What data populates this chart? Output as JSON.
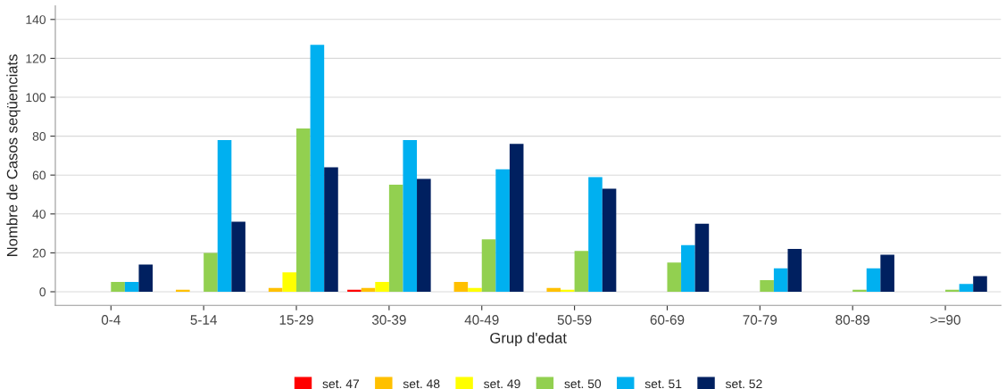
{
  "chart_data": {
    "type": "bar",
    "xlabel": "Grup d'edat",
    "ylabel": "Nombre de Casos seqüenciats",
    "categories": [
      "0-4",
      "5-14",
      "15-29",
      "30-39",
      "40-49",
      "50-59",
      "60-69",
      "70-79",
      "80-89",
      ">=90"
    ],
    "series": [
      {
        "name": "set. 47",
        "color": "#ff0000",
        "values": [
          null,
          null,
          null,
          1,
          null,
          null,
          null,
          null,
          null,
          null
        ]
      },
      {
        "name": "set. 48",
        "color": "#ffc000",
        "values": [
          null,
          1,
          2,
          2,
          5,
          2,
          null,
          null,
          null,
          null
        ]
      },
      {
        "name": "set. 49",
        "color": "#ffff00",
        "values": [
          null,
          null,
          10,
          5,
          2,
          1,
          null,
          null,
          null,
          null
        ]
      },
      {
        "name": "set. 50",
        "color": "#92d050",
        "values": [
          5,
          20,
          84,
          55,
          27,
          21,
          15,
          6,
          1,
          1
        ]
      },
      {
        "name": "set. 51",
        "color": "#00b0f0",
        "values": [
          5,
          78,
          127,
          78,
          63,
          59,
          24,
          12,
          12,
          4
        ]
      },
      {
        "name": "set. 52",
        "color": "#002060",
        "values": [
          14,
          36,
          64,
          58,
          76,
          53,
          35,
          22,
          19,
          8
        ]
      }
    ],
    "ylim": [
      -7,
      147
    ],
    "yticks": [
      0,
      20,
      40,
      60,
      80,
      100,
      120,
      140
    ],
    "grid": "y",
    "legend": "bottom"
  }
}
